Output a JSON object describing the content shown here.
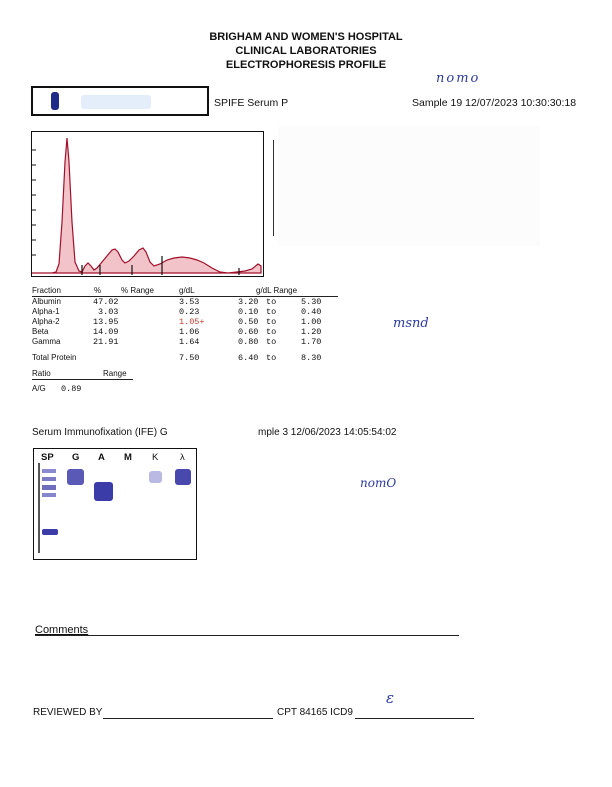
{
  "header": {
    "line1": "BRIGHAM AND WOMEN'S HOSPITAL",
    "line2": "CLINICAL LABORATORIES",
    "line3": "ELECTROPHORESIS PROFILE"
  },
  "spife_line": {
    "prefix": "SPIFE Serum P",
    "sample_text": "Sample 19 12/07/2023 10:30:30:18"
  },
  "handwriting": {
    "top": "nomo",
    "middle": "msnd",
    "ife": "nomO",
    "review": "ε"
  },
  "fractions": {
    "headers": {
      "fraction": "Fraction",
      "pct": "%",
      "pct_range": "% Range",
      "gdl": "g/dL",
      "gdl_range": "g/dL Range"
    },
    "rows": [
      {
        "name": "Albumin",
        "pct": "47.02",
        "gdl": "3.53",
        "low": "3.20",
        "to": "to",
        "high": "5.30"
      },
      {
        "name": "Alpha-1",
        "pct": "3.03",
        "gdl": "0.23",
        "low": "0.10",
        "to": "to",
        "high": "0.40"
      },
      {
        "name": "Alpha-2",
        "pct": "13.95",
        "gdl": "1.05+",
        "low": "0.50",
        "to": "to",
        "high": "1.00"
      },
      {
        "name": "Beta",
        "pct": "14.09",
        "gdl": "1.06",
        "low": "0.60",
        "to": "to",
        "high": "1.20"
      },
      {
        "name": "Gamma",
        "pct": "21.91",
        "gdl": "1.64",
        "low": "0.80",
        "to": "to",
        "high": "1.70"
      }
    ],
    "total": {
      "name": "Total Protein",
      "gdl": "7.50",
      "low": "6.40",
      "to": "to",
      "high": "8.30"
    },
    "flag_color": "#c0392b"
  },
  "ratio": {
    "label": "Ratio",
    "range_label": "Range",
    "name": "A/G",
    "value": "0.89"
  },
  "ife": {
    "title_prefix": "Serum Immunofixation (IFE)  G",
    "title_suffix": "mple 3  12/06/2023  14:05:54:02",
    "lanes": [
      "SP",
      "G",
      "A",
      "M",
      "K",
      "λ"
    ]
  },
  "comments_label": "Comments",
  "footer": {
    "reviewed_by": "REVIEWED BY",
    "cpt": "CPT 84165 ICD9"
  },
  "colors": {
    "trace_fill": "#f2c4c9",
    "trace_line": "#a0102a",
    "band": "#3c3ca8"
  }
}
